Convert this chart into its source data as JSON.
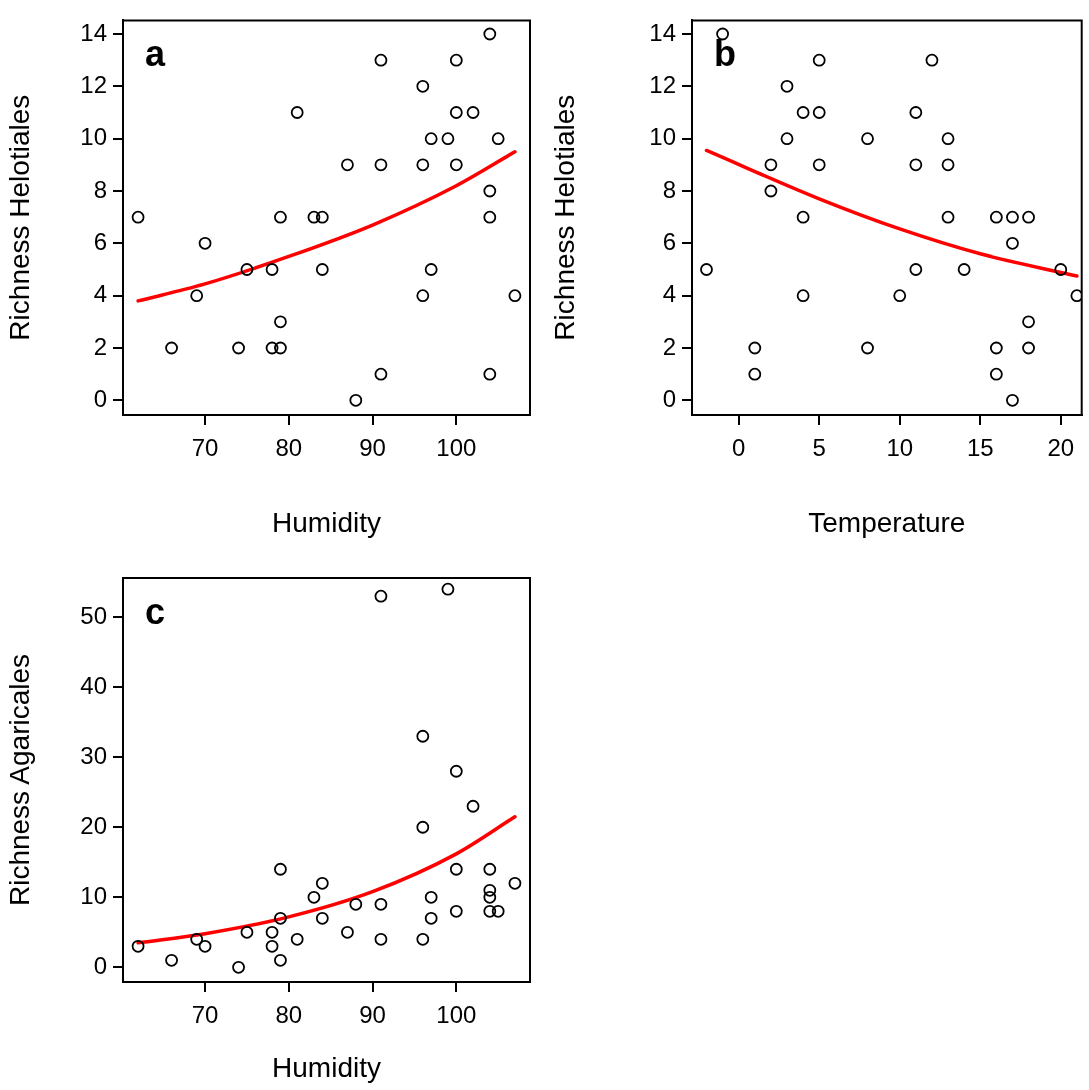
{
  "chart_data": [
    {
      "type": "scatter",
      "xlabel": "Humidity",
      "ylabel": "Richness Helotiales",
      "annotations": [
        "a"
      ],
      "xlim": [
        60.2,
        108.8
      ],
      "ylim": [
        -0.56,
        14.52
      ],
      "xticks": [
        70,
        80,
        90,
        100
      ],
      "yticks": [
        0,
        2,
        4,
        6,
        8,
        10,
        12,
        14
      ],
      "marker": "circle",
      "series": [
        {
          "type": "scatter",
          "color": "#000000",
          "x": [
            62,
            66,
            69,
            70,
            74,
            75,
            78,
            78,
            79,
            79,
            79,
            81,
            83,
            84,
            84,
            87,
            88,
            91,
            91,
            91,
            96,
            96,
            96,
            97,
            97,
            99,
            100,
            100,
            100,
            102,
            104,
            104,
            104,
            104,
            105,
            107
          ],
          "values": [
            7,
            2,
            4,
            6,
            2,
            5,
            5,
            2,
            7,
            3,
            2,
            11,
            7,
            7,
            5,
            9,
            0,
            13,
            9,
            1,
            12,
            9,
            4,
            10,
            5,
            10,
            13,
            11,
            9,
            11,
            14,
            8,
            7,
            1,
            10,
            4
          ]
        },
        {
          "type": "line",
          "color": "#ff0000",
          "marker": "none",
          "x": [
            62,
            70,
            80,
            90,
            100,
            107
          ],
          "values": [
            3.8,
            4.45,
            5.5,
            6.7,
            8.2,
            9.5
          ]
        }
      ]
    },
    {
      "type": "scatter",
      "xlabel": "Temperature",
      "ylabel": "Richness Helotiales",
      "annotations": [
        "b"
      ],
      "xlim": [
        -2.9,
        21.3
      ],
      "ylim": [
        -0.56,
        14.52
      ],
      "xticks": [
        0,
        5,
        10,
        15,
        20
      ],
      "yticks": [
        0,
        2,
        4,
        6,
        8,
        10,
        12,
        14
      ],
      "marker": "circle",
      "series": [
        {
          "type": "scatter",
          "color": "#000000",
          "x": [
            -2,
            -1,
            1,
            1,
            2,
            2,
            3,
            3,
            4,
            4,
            4,
            5,
            5,
            5,
            8,
            8,
            10,
            11,
            11,
            11,
            12,
            13,
            13,
            13,
            14,
            16,
            16,
            16,
            17,
            17,
            17,
            18,
            18,
            18,
            20,
            21
          ],
          "values": [
            5,
            14,
            2,
            1,
            9,
            8,
            12,
            10,
            11,
            7,
            4,
            13,
            11,
            9,
            10,
            2,
            4,
            11,
            9,
            5,
            13,
            10,
            9,
            7,
            5,
            7,
            2,
            1,
            7,
            6,
            0,
            7,
            3,
            2,
            5,
            4
          ]
        },
        {
          "type": "line",
          "color": "#ff0000",
          "marker": "none",
          "x": [
            -2,
            5,
            10,
            15,
            21
          ],
          "values": [
            9.55,
            7.7,
            6.55,
            5.6,
            4.75
          ]
        }
      ]
    },
    {
      "type": "scatter",
      "xlabel": "Humidity",
      "ylabel": "Richness Agaricales",
      "annotations": [
        "c"
      ],
      "xlim": [
        60.2,
        108.8
      ],
      "ylim": [
        -2.1,
        55.6
      ],
      "xticks": [
        70,
        80,
        90,
        100
      ],
      "yticks": [
        0,
        10,
        20,
        30,
        40,
        50
      ],
      "marker": "circle",
      "series": [
        {
          "type": "scatter",
          "color": "#000000",
          "x": [
            62,
            66,
            69,
            70,
            74,
            75,
            78,
            78,
            79,
            79,
            79,
            81,
            83,
            84,
            84,
            87,
            88,
            91,
            91,
            91,
            96,
            96,
            96,
            97,
            97,
            99,
            100,
            100,
            100,
            102,
            104,
            104,
            104,
            104,
            105,
            107
          ],
          "values": [
            3,
            1,
            4,
            3,
            0,
            5,
            5,
            3,
            14,
            7,
            1,
            4,
            10,
            12,
            7,
            5,
            9,
            53,
            9,
            4,
            33,
            20,
            4,
            10,
            7,
            54,
            28,
            14,
            8,
            23,
            14,
            11,
            10,
            8,
            8,
            12
          ]
        },
        {
          "type": "line",
          "color": "#ff0000",
          "marker": "none",
          "x": [
            62,
            70,
            80,
            90,
            100,
            107
          ],
          "values": [
            3.5,
            4.8,
            7.2,
            10.8,
            16.2,
            21.5
          ]
        }
      ]
    }
  ]
}
